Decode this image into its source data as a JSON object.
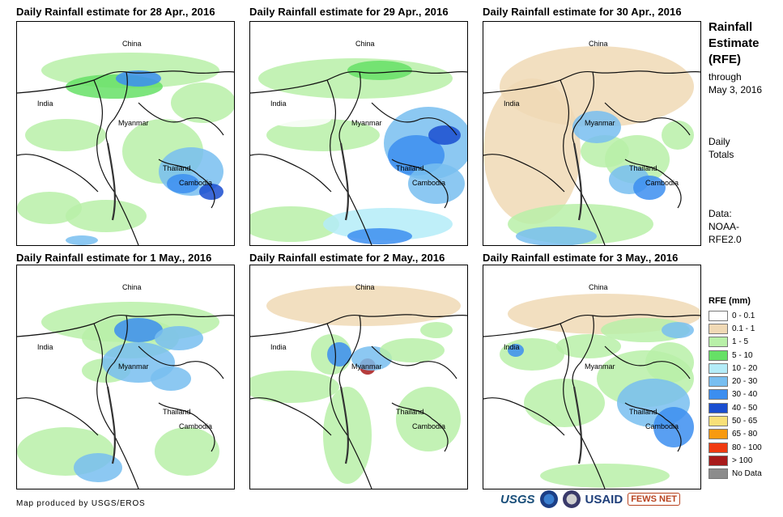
{
  "panels": [
    {
      "title": "Daily Rainfall estimate for 28 Apr., 2016"
    },
    {
      "title": "Daily Rainfall estimate for 29 Apr., 2016"
    },
    {
      "title": "Daily Rainfall estimate for 30 Apr., 2016"
    },
    {
      "title": "Daily Rainfall estimate for 1 May., 2016"
    },
    {
      "title": "Daily Rainfall estimate for 2 May., 2016"
    },
    {
      "title": "Daily Rainfall estimate for 3 May., 2016"
    }
  ],
  "map_labels": {
    "china": "China",
    "india": "India",
    "myanmar": "Myanmar",
    "thailand": "Thailand",
    "cambodia": "Cambodia"
  },
  "side": {
    "title_line1": "Rainfall",
    "title_line2": "Estimate",
    "title_line3": "(RFE)",
    "through1": "through",
    "through2": "May 3, 2016",
    "daily1": "Daily",
    "daily2": "Totals",
    "data1": "Data:",
    "data2": "NOAA-",
    "data3": "RFE2.0"
  },
  "legend": {
    "title": "RFE (mm)",
    "items": [
      {
        "label": "0 - 0.1",
        "color": "#ffffff"
      },
      {
        "label": "0.1 - 1",
        "color": "#f0d9b5"
      },
      {
        "label": "1 - 5",
        "color": "#b8f0a8"
      },
      {
        "label": "5 - 10",
        "color": "#66e066"
      },
      {
        "label": "10 - 20",
        "color": "#b4ecf8"
      },
      {
        "label": "20 - 30",
        "color": "#78bef0"
      },
      {
        "label": "30 - 40",
        "color": "#3c8ef0"
      },
      {
        "label": "40 - 50",
        "color": "#1a4ed0"
      },
      {
        "label": "50 - 65",
        "color": "#f8e078"
      },
      {
        "label": "65 - 80",
        "color": "#f89a10"
      },
      {
        "label": "80 - 100",
        "color": "#f03a10"
      },
      {
        "label": "> 100",
        "color": "#a81a1a"
      },
      {
        "label": "No Data",
        "color": "#8c8c8c"
      }
    ]
  },
  "credit": "Map produced by USGS/EROS",
  "logos": {
    "usgs": "USGS",
    "usaid": "USAID",
    "fews": "FEWS NET"
  }
}
